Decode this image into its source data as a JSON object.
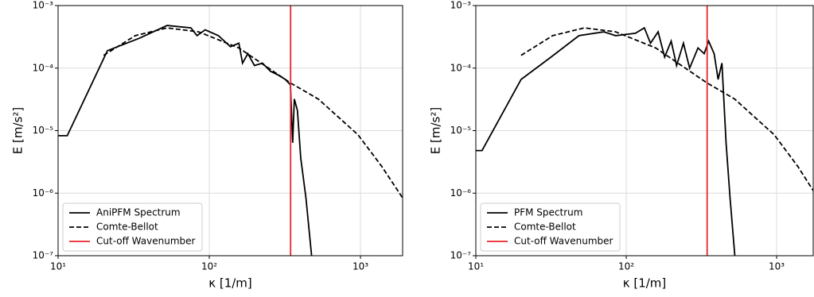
{
  "chart_data": [
    {
      "type": "line",
      "xlabel": "κ [1/m]",
      "ylabel": "E [m/s²]",
      "xscale": "log",
      "yscale": "log",
      "grid": true,
      "legend": "lower left",
      "xlim": [
        10,
        1900
      ],
      "ylim": [
        1e-07,
        0.001
      ],
      "xticks": [
        {
          "value": 10,
          "label": "10¹"
        },
        {
          "value": 100,
          "label": "10²"
        },
        {
          "value": 1000,
          "label": "10³"
        }
      ],
      "yticks": [
        {
          "value": 1e-07,
          "label": "10⁻⁷"
        },
        {
          "value": 1e-06,
          "label": "10⁻⁶"
        },
        {
          "value": 1e-05,
          "label": "10⁻⁵"
        },
        {
          "value": 0.0001,
          "label": "10⁻⁴"
        },
        {
          "value": 0.001,
          "label": "10⁻³"
        }
      ],
      "series": [
        {
          "name": "AniPFM Spectrum",
          "color": "#000000",
          "style": "solid",
          "x": [
            10,
            11.5,
            21.2,
            34.4,
            52.6,
            75.6,
            83,
            94,
            115,
            138,
            157,
            166,
            180,
            199,
            225,
            254,
            287,
            318,
            344,
            356,
            365,
            383,
            403,
            436,
            475
          ],
          "values": [
            8.3e-06,
            8.3e-06,
            0.00019,
            0.0003,
            0.00048,
            0.00044,
            0.00033,
            0.00041,
            0.00033,
            0.00022,
            0.00025,
            0.00012,
            0.00017,
            0.00011,
            0.00012,
            8.9e-05,
            7.7e-05,
            6.6e-05,
            5.4e-05,
            6.4e-06,
            3.2e-05,
            2.1e-05,
            3.6e-06,
            8.4e-07,
            1e-07
          ]
        },
        {
          "name": "Comte-Bellot",
          "color": "#000000",
          "style": "dash",
          "x": [
            20,
            32.4,
            52.6,
            85,
            157,
            344,
            526,
            963,
            1380,
            1900
          ],
          "values": [
            0.00016,
            0.00033,
            0.00044,
            0.00038,
            0.00021,
            5.8e-05,
            3.2e-05,
            8.6e-06,
            2.7e-06,
            8.4e-07
          ]
        }
      ],
      "cutoff": {
        "name": "Cut-off Wavenumber",
        "color": "#e8262a",
        "value": 345
      }
    },
    {
      "type": "line",
      "xlabel": "κ [1/m]",
      "ylabel": "E [m/s²]",
      "xscale": "log",
      "yscale": "log",
      "grid": true,
      "legend": "lower left",
      "xlim": [
        10,
        1750
      ],
      "ylim": [
        1e-07,
        0.001
      ],
      "xticks": [
        {
          "value": 10,
          "label": "10¹"
        },
        {
          "value": 100,
          "label": "10²"
        },
        {
          "value": 1000,
          "label": "10³"
        }
      ],
      "yticks": [
        {
          "value": 1e-07,
          "label": "10⁻⁷"
        },
        {
          "value": 1e-06,
          "label": "10⁻⁶"
        },
        {
          "value": 1e-05,
          "label": "10⁻⁵"
        },
        {
          "value": 0.0001,
          "label": "10⁻⁴"
        },
        {
          "value": 0.001,
          "label": "10⁻³"
        }
      ],
      "series": [
        {
          "name": "PFM Spectrum",
          "color": "#000000",
          "style": "solid",
          "x": [
            10,
            11,
            20,
            31.6,
            48.5,
            71,
            85,
            115,
            132,
            145,
            163,
            180,
            199,
            216,
            240,
            264,
            300,
            330,
            353,
            384,
            408,
            433,
            461,
            490,
            527
          ],
          "values": [
            4.8e-06,
            4.8e-06,
            6.6e-05,
            0.00015,
            0.00033,
            0.00038,
            0.00033,
            0.00036,
            0.00044,
            0.00025,
            0.00038,
            0.00015,
            0.00027,
            0.00011,
            0.00025,
            0.0001,
            0.00021,
            0.00017,
            0.00027,
            0.00017,
            6.6e-05,
            0.00012,
            6.4e-06,
            8.4e-07,
            1e-07
          ]
        },
        {
          "name": "Comte-Bellot",
          "color": "#000000",
          "style": "dash",
          "x": [
            20,
            32.4,
            52.6,
            85,
            157,
            344,
            526,
            963,
            1380,
            1750
          ],
          "values": [
            0.00016,
            0.00033,
            0.00044,
            0.00038,
            0.00021,
            5.8e-05,
            3.2e-05,
            8.6e-06,
            2.7e-06,
            1.1e-06
          ]
        }
      ],
      "cutoff": {
        "name": "Cut-off Wavenumber",
        "color": "#e8262a",
        "value": 345
      }
    }
  ]
}
